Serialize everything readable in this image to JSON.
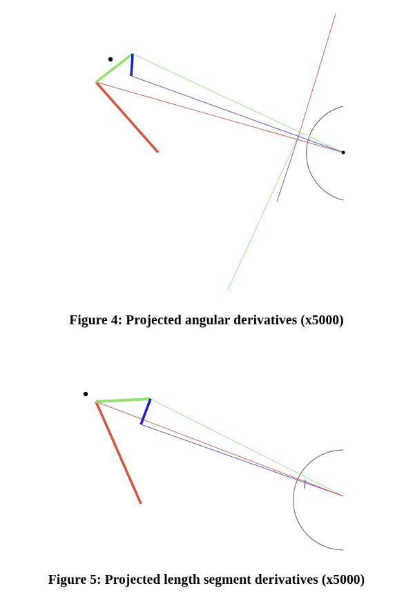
{
  "figures": [
    {
      "caption": "Figure 4: Projected angular derivatives (x5000)"
    },
    {
      "caption": "Figure 5: Projected length segment derivatives (x5000)"
    }
  ],
  "colors": {
    "red": "#d9503f",
    "red_thin": "#d65f56",
    "green": "#8ee46a",
    "green_thin": "#9de88d",
    "blue": "#1a1ad6",
    "blue_thin": "#5b5be6",
    "arc": "#555555",
    "dot": "#000000"
  }
}
